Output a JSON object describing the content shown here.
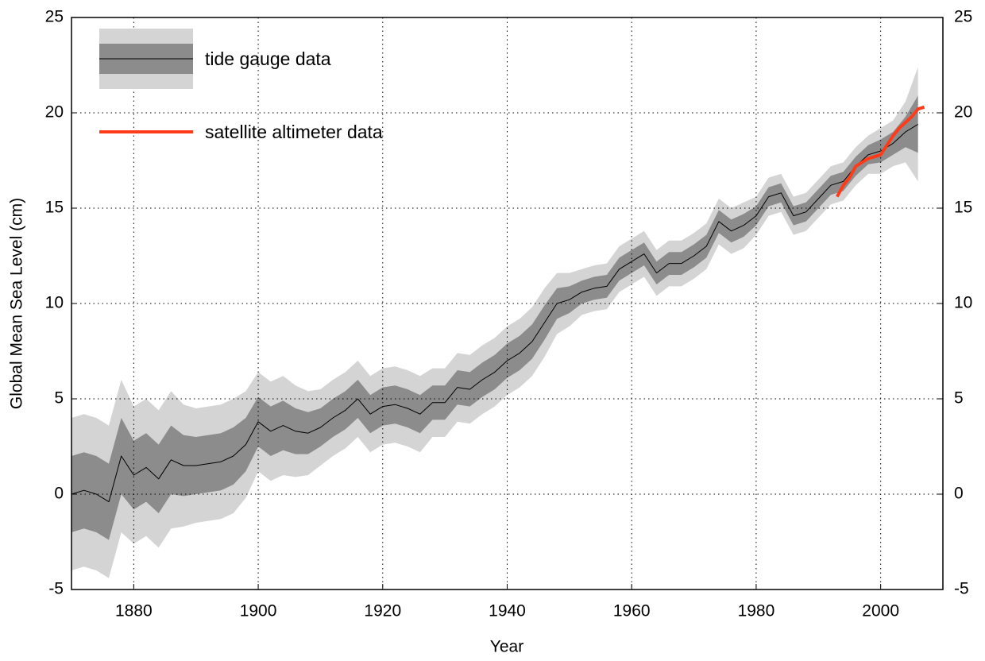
{
  "chart_data": {
    "type": "line",
    "x_label": "Year",
    "y_label": "Global Mean Sea Level (cm)",
    "xlim": [
      1870,
      2010
    ],
    "xticks": [
      1880,
      1900,
      1920,
      1940,
      1960,
      1980,
      2000
    ],
    "ylim": [
      -5,
      25
    ],
    "yticks": [
      -5,
      0,
      5,
      10,
      15,
      20,
      25
    ],
    "y2lim": [
      -5,
      25
    ],
    "y2ticks": [
      -5,
      0,
      5,
      10,
      15,
      20,
      25
    ],
    "grid": true,
    "legend": "upper left",
    "series": [
      {
        "name": "tide gauge data",
        "color": "#000000",
        "band_colors": [
          "#8c8c8c",
          "#d4d4d4"
        ],
        "x": [
          1870,
          1872,
          1874,
          1876,
          1878,
          1880,
          1882,
          1884,
          1886,
          1888,
          1890,
          1892,
          1894,
          1896,
          1898,
          1900,
          1902,
          1904,
          1906,
          1908,
          1910,
          1912,
          1914,
          1916,
          1918,
          1920,
          1922,
          1924,
          1926,
          1928,
          1930,
          1932,
          1934,
          1936,
          1938,
          1940,
          1942,
          1944,
          1946,
          1948,
          1950,
          1952,
          1954,
          1956,
          1958,
          1960,
          1962,
          1964,
          1966,
          1968,
          1970,
          1972,
          1974,
          1976,
          1978,
          1980,
          1982,
          1984,
          1986,
          1988,
          1990,
          1992,
          1994,
          1996,
          1998,
          2000,
          2002,
          2004,
          2006
        ],
        "values": [
          0.0,
          0.2,
          0.0,
          -0.4,
          2.0,
          1.0,
          1.4,
          0.8,
          1.8,
          1.5,
          1.5,
          1.6,
          1.7,
          2.0,
          2.6,
          3.8,
          3.3,
          3.6,
          3.3,
          3.2,
          3.5,
          4.0,
          4.4,
          5.0,
          4.2,
          4.6,
          4.7,
          4.5,
          4.2,
          4.8,
          4.8,
          5.6,
          5.5,
          6.0,
          6.4,
          7.0,
          7.4,
          8.0,
          9.0,
          10.0,
          10.2,
          10.6,
          10.8,
          10.9,
          11.8,
          12.2,
          12.6,
          11.6,
          12.1,
          12.1,
          12.5,
          13.0,
          14.3,
          13.8,
          14.1,
          14.6,
          15.6,
          15.8,
          14.6,
          14.8,
          15.5,
          16.2,
          16.4,
          17.2,
          17.8,
          18.0,
          18.4,
          19.0,
          19.4
        ],
        "error": [
          2.0,
          2.0,
          2.0,
          2.0,
          2.0,
          1.8,
          1.8,
          1.8,
          1.8,
          1.6,
          1.5,
          1.5,
          1.5,
          1.5,
          1.4,
          1.3,
          1.3,
          1.3,
          1.2,
          1.1,
          1.0,
          1.0,
          1.0,
          1.0,
          1.0,
          1.0,
          1.0,
          1.0,
          1.0,
          0.9,
          0.9,
          0.9,
          0.9,
          0.9,
          0.9,
          0.9,
          0.9,
          0.9,
          0.9,
          0.8,
          0.7,
          0.6,
          0.6,
          0.6,
          0.6,
          0.6,
          0.6,
          0.6,
          0.6,
          0.6,
          0.6,
          0.6,
          0.6,
          0.6,
          0.6,
          0.5,
          0.5,
          0.5,
          0.5,
          0.5,
          0.5,
          0.5,
          0.5,
          0.5,
          0.5,
          0.6,
          0.6,
          0.8,
          1.5
        ]
      },
      {
        "name": "satellite altimeter data",
        "color": "#ff3b1a",
        "x": [
          1993,
          1994,
          1995,
          1996,
          1997,
          1998,
          1999,
          2000,
          2001,
          2002,
          2003,
          2004,
          2005,
          2006,
          2007
        ],
        "values": [
          15.6,
          16.2,
          16.6,
          17.2,
          17.4,
          17.6,
          17.7,
          17.8,
          18.3,
          18.8,
          19.2,
          19.5,
          19.8,
          20.2,
          20.3
        ]
      }
    ]
  }
}
